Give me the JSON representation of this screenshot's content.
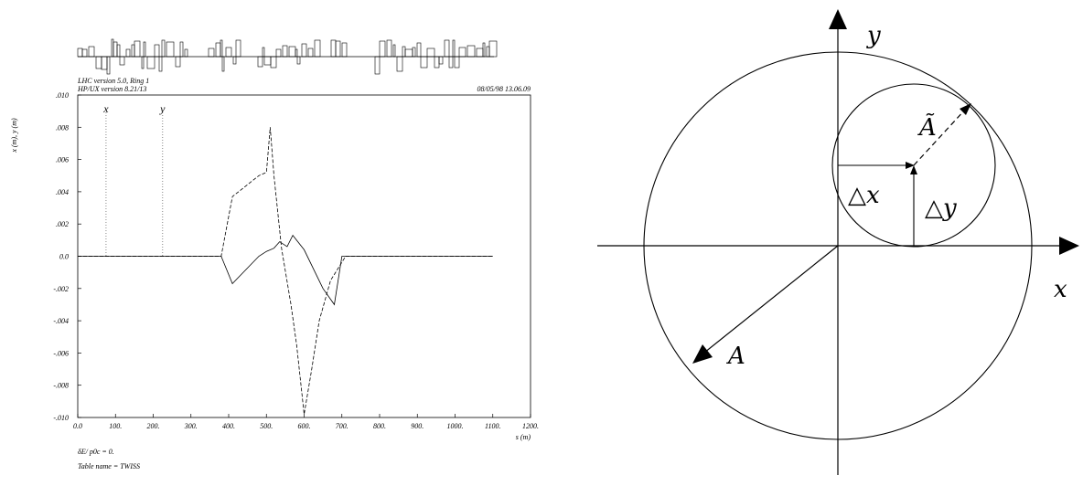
{
  "chart_data": [
    {
      "type": "line",
      "header": {
        "line1": "LHC version 5.0, Ring 1",
        "line2": "HP/UX version 8.21/13",
        "date": "08/05/98  13.06.09"
      },
      "ylabel": "x (m), y (m)",
      "xlabel": "s (m)",
      "xlim": [
        0,
        1200
      ],
      "ylim": [
        -0.01,
        0.01
      ],
      "xticks": [
        "0.0",
        "100.",
        "200.",
        "300.",
        "400.",
        "500.",
        "600.",
        "700.",
        "800.",
        "900.",
        "1000.",
        "1100.",
        "1200."
      ],
      "yticks": [
        ".010",
        ".008",
        ".006",
        ".004",
        ".002",
        "0.0",
        "-.002",
        "-.004",
        "-.006",
        "-.008",
        "-.010"
      ],
      "marker_labels": [
        {
          "label": "x",
          "s": 75
        },
        {
          "label": "y",
          "s": 225
        }
      ],
      "series": [
        {
          "name": "x",
          "style": "solid",
          "x": [
            0,
            380,
            410,
            480,
            500,
            520,
            535,
            555,
            570,
            600,
            650,
            680,
            700,
            1100
          ],
          "y": [
            0,
            0,
            -0.0017,
            0,
            0.0003,
            0.0005,
            0.0009,
            0.0006,
            0.0013,
            0.0004,
            -0.002,
            -0.003,
            0,
            0
          ]
        },
        {
          "name": "y",
          "style": "dashed",
          "x": [
            0,
            380,
            410,
            480,
            500,
            510,
            520,
            540,
            565,
            580,
            600,
            620,
            640,
            670,
            710,
            1100
          ],
          "y": [
            0,
            0,
            0.0037,
            0.005,
            0.0052,
            0.008,
            0.005,
            0.0005,
            -0.003,
            -0.0055,
            -0.0098,
            -0.007,
            -0.004,
            -0.0015,
            0,
            0
          ]
        }
      ],
      "footer": {
        "line1": "δE/ p0c  =  0.",
        "line2": "Table name = TWISS"
      }
    },
    {
      "type": "diagram",
      "labels": {
        "x_axis": "x",
        "y_axis": "y",
        "A": "A",
        "A_tilde": "Ã",
        "dx": "△x",
        "dy": "△y"
      }
    }
  ]
}
